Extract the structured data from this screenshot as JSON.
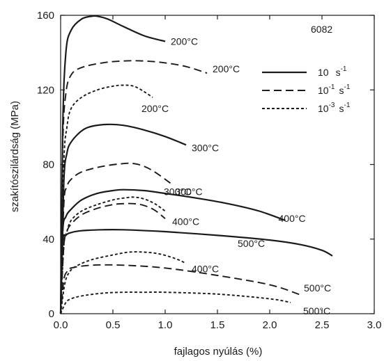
{
  "chart_data": {
    "type": "line",
    "title": "",
    "annotation": "6082",
    "xlabel": "fajlagos nyúlás (%)",
    "ylabel": "szakítószilárdság (MPa)",
    "xlim": [
      0,
      3.0
    ],
    "ylim": [
      0,
      160
    ],
    "xticks": [
      "0.0",
      "0.5",
      "1.0",
      "1.5",
      "2.0",
      "2.5",
      "3.0"
    ],
    "xtick_values": [
      0,
      0.5,
      1.0,
      1.5,
      2.0,
      2.5,
      3.0
    ],
    "yticks": [
      "0",
      "40",
      "80",
      "120",
      "160"
    ],
    "ytick_values": [
      0,
      40,
      80,
      120,
      160
    ],
    "grid": false,
    "legend_position": "top-right",
    "legend": [
      {
        "style": "solid",
        "base": "10",
        "exp": "s",
        "sup": "-1"
      },
      {
        "style": "dashed",
        "base": "10",
        "exp": "-1",
        "sup": "-1"
      },
      {
        "style": "dotted",
        "base": "10",
        "exp": "-3",
        "sup": "-1"
      }
    ],
    "series": [
      {
        "style": "solid",
        "label": "200°C",
        "x": [
          0.0,
          0.02,
          0.05,
          0.1,
          0.2,
          0.3,
          0.35,
          0.45,
          0.6,
          0.8,
          1.0
        ],
        "y": [
          0,
          100,
          140,
          152,
          158,
          159.5,
          159.5,
          158,
          154,
          149,
          146
        ]
      },
      {
        "style": "dashed",
        "label": "200°C",
        "x": [
          0.0,
          0.02,
          0.05,
          0.1,
          0.2,
          0.4,
          0.6,
          0.8,
          1.0,
          1.2,
          1.4
        ],
        "y": [
          0,
          90,
          118,
          128,
          132,
          134.5,
          135.5,
          135.5,
          134.5,
          132.5,
          129
        ]
      },
      {
        "style": "dotted",
        "label": "200°C",
        "x": [
          0.0,
          0.03,
          0.06,
          0.1,
          0.2,
          0.35,
          0.5,
          0.6,
          0.7,
          0.8,
          0.88
        ],
        "y": [
          0,
          80,
          100,
          110,
          116,
          120,
          122,
          122.5,
          122,
          119,
          116
        ]
      },
      {
        "style": "solid",
        "label": "300°C",
        "x": [
          0.0,
          0.03,
          0.06,
          0.1,
          0.2,
          0.3,
          0.45,
          0.6,
          0.8,
          1.0,
          1.2
        ],
        "y": [
          0,
          70,
          86,
          92,
          98,
          100.5,
          101.5,
          101,
          98.5,
          95,
          90.5
        ]
      },
      {
        "style": "dashed",
        "label": "300°C",
        "x": [
          0.0,
          0.03,
          0.06,
          0.1,
          0.2,
          0.4,
          0.6,
          0.7,
          0.8,
          0.9,
          1.05
        ],
        "y": [
          0,
          58,
          68,
          72,
          76,
          79,
          80.5,
          80.5,
          79,
          76,
          70
        ]
      },
      {
        "style": "dotted",
        "label": "300°C",
        "x": [
          0.0,
          0.03,
          0.06,
          0.1,
          0.2,
          0.35,
          0.5,
          0.6,
          0.7,
          0.8,
          0.9,
          1.0
        ],
        "y": [
          0,
          36,
          44,
          50,
          55,
          58.5,
          61,
          62,
          62.5,
          61.5,
          59,
          55
        ]
      },
      {
        "style": "solid",
        "label": "400°C",
        "x": [
          0.0,
          0.02,
          0.05,
          0.1,
          0.2,
          0.35,
          0.5,
          0.6,
          0.8,
          1.0,
          1.3,
          1.6,
          1.9,
          2.15
        ],
        "y": [
          0,
          44,
          52,
          56,
          61,
          64.5,
          66,
          66.5,
          66,
          64.5,
          62,
          59,
          55,
          50
        ]
      },
      {
        "style": "dashed",
        "label": "400°C",
        "x": [
          0.0,
          0.03,
          0.06,
          0.1,
          0.2,
          0.35,
          0.5,
          0.6,
          0.7,
          0.8,
          0.9,
          1.0
        ],
        "y": [
          0,
          36,
          44,
          48,
          53,
          56.5,
          58.5,
          59,
          59,
          58,
          55.5,
          51
        ]
      },
      {
        "style": "solid",
        "label": "500°C",
        "x": [
          0.0,
          0.02,
          0.05,
          0.1,
          0.2,
          0.4,
          0.6,
          1.0,
          1.5,
          2.0,
          2.3,
          2.5,
          2.6
        ],
        "y": [
          0,
          38,
          42,
          43.5,
          44.5,
          45,
          45,
          44,
          42,
          39.5,
          37,
          34,
          31
        ]
      },
      {
        "style": "dotted",
        "label": "400°C",
        "x": [
          0.0,
          0.04,
          0.08,
          0.15,
          0.3,
          0.5,
          0.65,
          0.8,
          0.95,
          1.1,
          1.2
        ],
        "y": [
          0,
          16,
          22,
          25.5,
          29,
          31.5,
          33,
          33,
          32,
          29.5,
          27
        ]
      },
      {
        "style": "dashed",
        "label": "500°C",
        "x": [
          0.0,
          0.03,
          0.06,
          0.1,
          0.3,
          0.6,
          1.0,
          1.5,
          2.0,
          2.3
        ],
        "y": [
          0,
          18,
          22.5,
          24.5,
          26,
          26,
          24.5,
          20.5,
          15.5,
          10
        ]
      },
      {
        "style": "dotted",
        "label": "500°C",
        "x": [
          0.0,
          0.05,
          0.1,
          0.2,
          0.4,
          0.6,
          0.8,
          1.0,
          1.5,
          2.0,
          2.2
        ],
        "y": [
          0,
          6,
          8,
          9.5,
          11,
          11.5,
          11.5,
          11.5,
          10.5,
          8,
          6
        ]
      }
    ],
    "label_positions": [
      "200°C",
      "200°C",
      "200°C",
      "300°C",
      "300°C",
      "300°C",
      "400°C",
      "400°C",
      "500°C",
      "400°C",
      "500°C",
      "500°C"
    ]
  }
}
